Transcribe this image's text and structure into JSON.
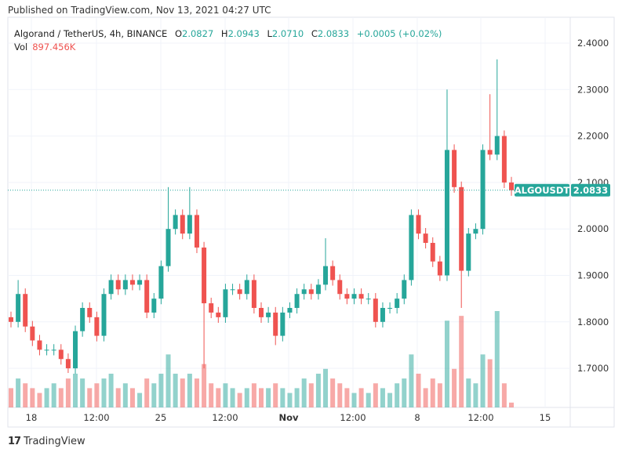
{
  "published": "Published on TradingView.com, Nov 13, 2021 04:27 UTC",
  "legend": {
    "symbol": "Algorand / TetherUS, 4h, BINANCE",
    "o_label": "O",
    "o": "2.0827",
    "h_label": "H",
    "h": "2.0943",
    "l_label": "L",
    "l": "2.0710",
    "c_label": "C",
    "c": "2.0833",
    "change": "+0.0005 (+0.02%)",
    "vol_label": "Vol",
    "vol": "897.456K"
  },
  "price_tag": {
    "ticker": "ALGOUSDT",
    "price": "2.0833"
  },
  "logo": "TradingView",
  "colors": {
    "up": "#26a69a",
    "down": "#ef5350"
  },
  "chart_data": {
    "type": "candlestick",
    "title": "Algorand / TetherUS, 4h, BINANCE",
    "ylim": [
      1.645,
      2.455
    ],
    "y_ticks": [
      "2.4000",
      "2.3000",
      "2.2000",
      "2.1000",
      "2.0000",
      "1.9000",
      "1.8000",
      "1.7000"
    ],
    "x_ticks": [
      "18",
      "12:00",
      "25",
      "12:00",
      "Nov",
      "12:00",
      "8",
      "12:00",
      "15"
    ],
    "closes": [
      1.8,
      1.86,
      1.79,
      1.76,
      1.74,
      1.74,
      1.74,
      1.72,
      1.7,
      1.78,
      1.83,
      1.81,
      1.77,
      1.86,
      1.89,
      1.87,
      1.89,
      1.88,
      1.89,
      1.82,
      1.85,
      1.92,
      2.0,
      2.03,
      1.99,
      2.03,
      1.96,
      1.84,
      1.82,
      1.81,
      1.87,
      1.87,
      1.86,
      1.89,
      1.83,
      1.81,
      1.82,
      1.77,
      1.82,
      1.83,
      1.86,
      1.87,
      1.86,
      1.88,
      1.92,
      1.89,
      1.86,
      1.85,
      1.86,
      1.85,
      1.85,
      1.8,
      1.83,
      1.83,
      1.85,
      1.89,
      2.03,
      1.99,
      1.97,
      1.93,
      1.9,
      2.17,
      2.09,
      1.91,
      1.99,
      2.0,
      2.17,
      2.16,
      2.2,
      2.1,
      2.0833
    ],
    "high_overrides": {
      "1": 1.89,
      "22": 2.09,
      "25": 2.09,
      "44": 1.98,
      "61": 2.3,
      "67": 2.29,
      "68": 2.365
    },
    "low_overrides": {
      "8": 1.69,
      "27": 1.7,
      "37": 1.75,
      "63": 1.83
    },
    "volumes": [
      0.2,
      0.3,
      0.25,
      0.2,
      0.15,
      0.2,
      0.25,
      0.2,
      0.3,
      0.35,
      0.3,
      0.2,
      0.25,
      0.3,
      0.35,
      0.2,
      0.25,
      0.2,
      0.15,
      0.3,
      0.25,
      0.35,
      0.55,
      0.35,
      0.3,
      0.35,
      0.3,
      0.45,
      0.25,
      0.2,
      0.25,
      0.2,
      0.15,
      0.2,
      0.25,
      0.2,
      0.2,
      0.25,
      0.2,
      0.15,
      0.2,
      0.3,
      0.25,
      0.35,
      0.4,
      0.3,
      0.25,
      0.2,
      0.15,
      0.2,
      0.15,
      0.25,
      0.2,
      0.15,
      0.25,
      0.3,
      0.55,
      0.35,
      0.2,
      0.3,
      0.25,
      0.9,
      0.4,
      0.95,
      0.3,
      0.25,
      0.55,
      0.5,
      1.0,
      0.25,
      0.05
    ]
  }
}
